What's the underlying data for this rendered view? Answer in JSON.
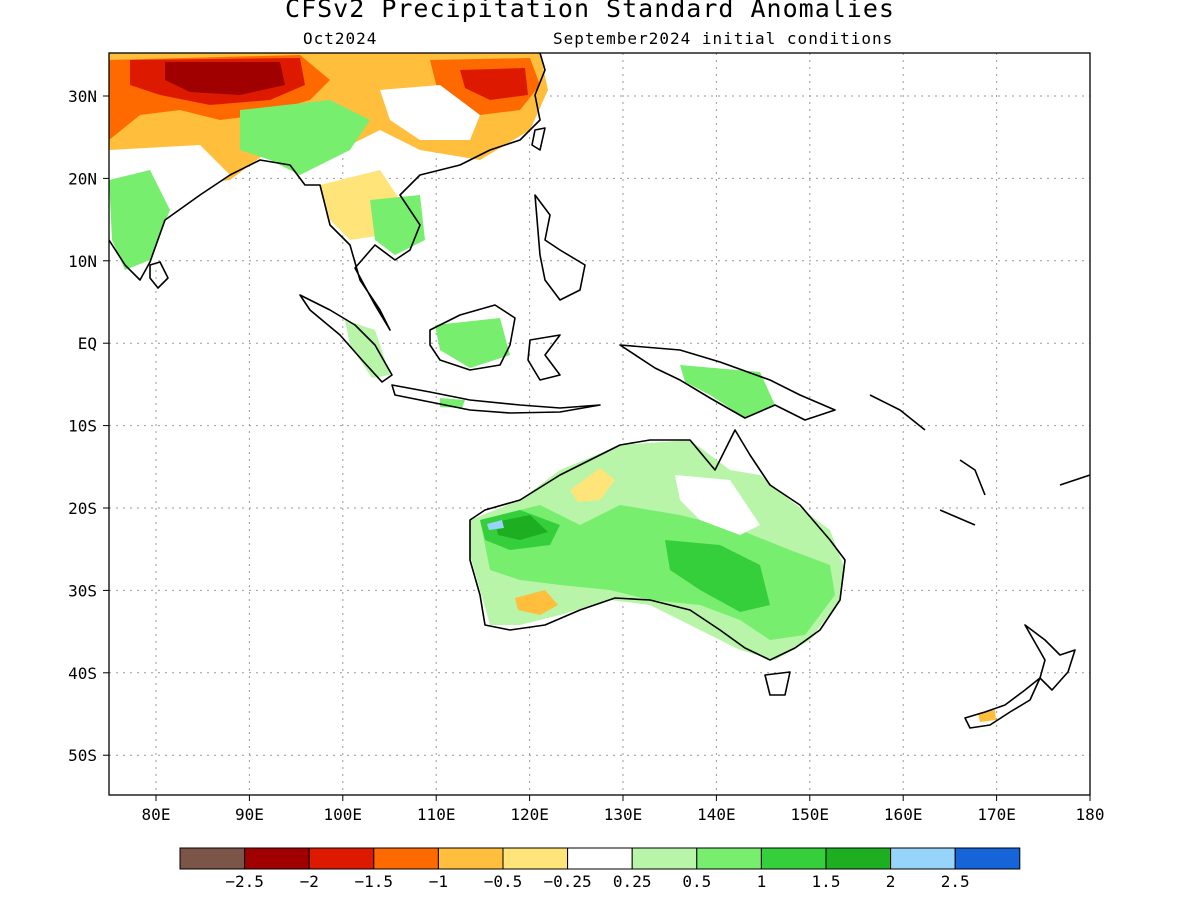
{
  "title": "CFSv2 Precipitation Standard Anomalies",
  "subtitle_left": "Oct2024",
  "subtitle_right": "September2024 initial conditions",
  "lat_labels": [
    "30N",
    "20N",
    "10N",
    "EQ",
    "10S",
    "20S",
    "30S",
    "40S",
    "50S"
  ],
  "lon_labels": [
    "80E",
    "90E",
    "100E",
    "110E",
    "120E",
    "130E",
    "140E",
    "150E",
    "160E",
    "170E",
    "180"
  ],
  "colorbar": {
    "labels": [
      "-2.5",
      "-2",
      "-1.5",
      "-1",
      "-0.5",
      "-0.25",
      "0.25",
      "0.5",
      "1",
      "1.5",
      "2",
      "2.5"
    ],
    "colors": [
      "#7a5548",
      "#a00000",
      "#dd1a00",
      "#ff6a00",
      "#ffbe3c",
      "#ffe479",
      "#ffffff",
      "#b8f5a8",
      "#78ee6e",
      "#36cf3c",
      "#1daf21",
      "#97d4fa",
      "#1565d8"
    ]
  }
}
